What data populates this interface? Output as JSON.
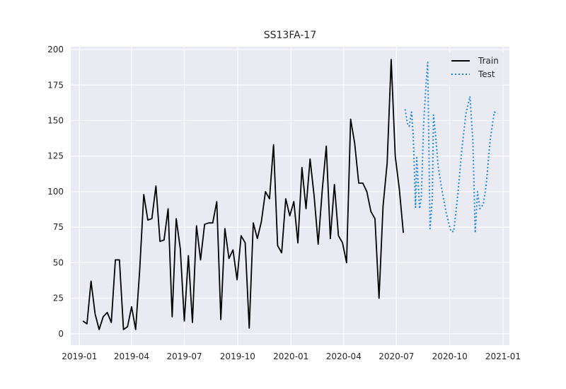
{
  "chart_data": {
    "type": "line",
    "title": "SS13FA-17",
    "xlabel": "",
    "ylabel": "",
    "ylim": [
      -8,
      202
    ],
    "xlim": [
      "2018-12-17",
      "2021-01-12"
    ],
    "x_ticks": [
      {
        "date": "2019-01-01",
        "label": "2019-01"
      },
      {
        "date": "2019-04-01",
        "label": "2019-04"
      },
      {
        "date": "2019-07-01",
        "label": "2019-07"
      },
      {
        "date": "2019-10-01",
        "label": "2019-10"
      },
      {
        "date": "2020-01-01",
        "label": "2020-01"
      },
      {
        "date": "2020-04-01",
        "label": "2020-04"
      },
      {
        "date": "2020-07-01",
        "label": "2020-07"
      },
      {
        "date": "2020-10-01",
        "label": "2020-10"
      },
      {
        "date": "2021-01-01",
        "label": "2021-01"
      }
    ],
    "y_ticks": [
      0,
      25,
      50,
      75,
      100,
      125,
      150,
      175,
      200
    ],
    "grid": true,
    "background": "#eaeaf2",
    "legend_position": "top-right",
    "series": [
      {
        "name": "Train",
        "color": "#000000",
        "style": "solid",
        "points": [
          [
            "2019-01-07",
            9
          ],
          [
            "2019-01-14",
            7
          ],
          [
            "2019-01-21",
            37
          ],
          [
            "2019-01-28",
            14
          ],
          [
            "2019-02-04",
            3
          ],
          [
            "2019-02-11",
            12
          ],
          [
            "2019-02-18",
            15
          ],
          [
            "2019-02-25",
            8
          ],
          [
            "2019-03-04",
            52
          ],
          [
            "2019-03-11",
            52
          ],
          [
            "2019-03-18",
            3
          ],
          [
            "2019-03-25",
            5
          ],
          [
            "2019-04-01",
            19
          ],
          [
            "2019-04-08",
            3
          ],
          [
            "2019-04-15",
            45
          ],
          [
            "2019-04-22",
            98
          ],
          [
            "2019-04-29",
            80
          ],
          [
            "2019-05-06",
            81
          ],
          [
            "2019-05-13",
            104
          ],
          [
            "2019-05-20",
            65
          ],
          [
            "2019-05-27",
            66
          ],
          [
            "2019-06-03",
            88
          ],
          [
            "2019-06-10",
            12
          ],
          [
            "2019-06-17",
            81
          ],
          [
            "2019-06-24",
            60
          ],
          [
            "2019-07-01",
            9
          ],
          [
            "2019-07-08",
            55
          ],
          [
            "2019-07-15",
            8
          ],
          [
            "2019-07-22",
            76
          ],
          [
            "2019-07-29",
            52
          ],
          [
            "2019-08-05",
            77
          ],
          [
            "2019-08-12",
            78
          ],
          [
            "2019-08-19",
            78
          ],
          [
            "2019-08-26",
            93
          ],
          [
            "2019-09-02",
            10
          ],
          [
            "2019-09-09",
            74
          ],
          [
            "2019-09-16",
            53
          ],
          [
            "2019-09-23",
            59
          ],
          [
            "2019-09-30",
            38
          ],
          [
            "2019-10-07",
            69
          ],
          [
            "2019-10-14",
            64
          ],
          [
            "2019-10-21",
            4
          ],
          [
            "2019-10-28",
            78
          ],
          [
            "2019-11-04",
            67
          ],
          [
            "2019-11-11",
            79
          ],
          [
            "2019-11-18",
            100
          ],
          [
            "2019-11-25",
            95
          ],
          [
            "2019-12-02",
            133
          ],
          [
            "2019-12-09",
            62
          ],
          [
            "2019-12-16",
            57
          ],
          [
            "2019-12-23",
            95
          ],
          [
            "2019-12-30",
            83
          ],
          [
            "2020-01-06",
            93
          ],
          [
            "2020-01-13",
            64
          ],
          [
            "2020-01-20",
            117
          ],
          [
            "2020-01-27",
            88
          ],
          [
            "2020-02-03",
            123
          ],
          [
            "2020-02-10",
            97
          ],
          [
            "2020-02-17",
            63
          ],
          [
            "2020-02-24",
            101
          ],
          [
            "2020-03-02",
            132
          ],
          [
            "2020-03-09",
            67
          ],
          [
            "2020-03-16",
            105
          ],
          [
            "2020-03-23",
            69
          ],
          [
            "2020-03-30",
            64
          ],
          [
            "2020-04-06",
            50
          ],
          [
            "2020-04-13",
            151
          ],
          [
            "2020-04-20",
            134
          ],
          [
            "2020-04-27",
            106
          ],
          [
            "2020-05-04",
            106
          ],
          [
            "2020-05-11",
            100
          ],
          [
            "2020-05-18",
            86
          ],
          [
            "2020-05-25",
            81
          ],
          [
            "2020-06-01",
            25
          ],
          [
            "2020-06-08",
            90
          ],
          [
            "2020-06-15",
            120
          ],
          [
            "2020-06-22",
            193
          ],
          [
            "2020-06-29",
            125
          ],
          [
            "2020-07-06",
            102
          ],
          [
            "2020-07-13",
            71
          ]
        ]
      },
      {
        "name": "Test",
        "color": "#1e88e5",
        "style": "dotted",
        "points": [
          [
            "2020-07-16",
            158
          ],
          [
            "2020-07-20",
            148
          ],
          [
            "2020-07-23",
            146
          ],
          [
            "2020-07-27",
            156
          ],
          [
            "2020-07-30",
            140
          ],
          [
            "2020-08-03",
            89
          ],
          [
            "2020-08-05",
            124
          ],
          [
            "2020-08-08",
            103
          ],
          [
            "2020-08-10",
            88
          ],
          [
            "2020-08-13",
            96
          ],
          [
            "2020-08-17",
            148
          ],
          [
            "2020-08-21",
            175
          ],
          [
            "2020-08-24",
            191
          ],
          [
            "2020-08-28",
            74
          ],
          [
            "2020-09-01",
            95
          ],
          [
            "2020-09-03",
            154
          ],
          [
            "2020-09-07",
            138
          ],
          [
            "2020-09-11",
            118
          ],
          [
            "2020-09-18",
            100
          ],
          [
            "2020-09-25",
            85
          ],
          [
            "2020-10-03",
            72
          ],
          [
            "2020-10-08",
            72
          ],
          [
            "2020-10-15",
            98
          ],
          [
            "2020-10-22",
            130
          ],
          [
            "2020-10-29",
            155
          ],
          [
            "2020-11-05",
            167
          ],
          [
            "2020-11-10",
            135
          ],
          [
            "2020-11-14",
            71
          ],
          [
            "2020-11-18",
            100
          ],
          [
            "2020-11-22",
            88
          ],
          [
            "2020-11-28",
            91
          ],
          [
            "2020-12-03",
            105
          ],
          [
            "2020-12-10",
            137
          ],
          [
            "2020-12-17",
            156
          ],
          [
            "2020-12-23",
            155
          ]
        ]
      }
    ]
  }
}
